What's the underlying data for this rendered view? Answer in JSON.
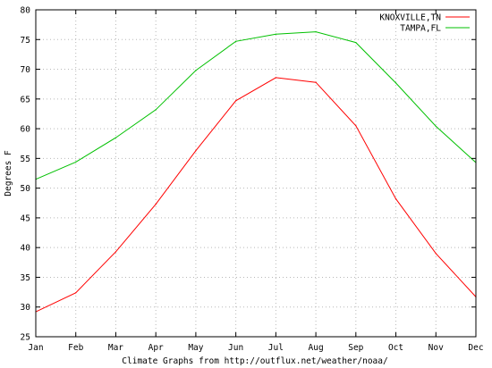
{
  "chart_data": {
    "type": "line",
    "categories": [
      "Jan",
      "Feb",
      "Mar",
      "Apr",
      "May",
      "Jun",
      "Jul",
      "Aug",
      "Sep",
      "Oct",
      "Nov",
      "Dec"
    ],
    "series": [
      {
        "name": "KNOXVILLE,TN",
        "color": "#ff0000",
        "values": [
          29.2,
          32.4,
          39.3,
          47.3,
          56.3,
          64.7,
          68.6,
          67.8,
          60.5,
          48.2,
          39.0,
          31.7
        ]
      },
      {
        "name": "TAMPA,FL",
        "color": "#00c000",
        "values": [
          51.5,
          54.4,
          58.5,
          63.2,
          69.8,
          74.7,
          75.9,
          76.3,
          74.5,
          67.7,
          60.4,
          54.3
        ]
      }
    ],
    "ylabel": "Degrees F",
    "xlabel": "Climate Graphs from http://outflux.net/weather/noaa/",
    "ylim": [
      25,
      80
    ],
    "yticks": [
      25,
      30,
      35,
      40,
      45,
      50,
      55,
      60,
      65,
      70,
      75,
      80
    ],
    "grid": true,
    "legend_position": "top-right"
  }
}
